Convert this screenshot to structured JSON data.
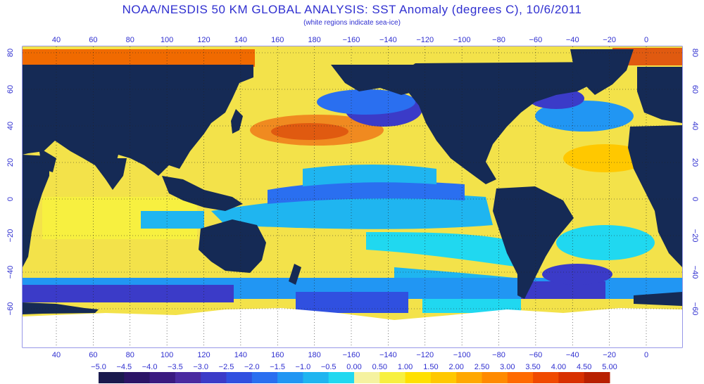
{
  "title": "NOAA/NESDIS 50 KM GLOBAL ANALYSIS: SST Anomaly (degrees C), 10/6/2011",
  "subtitle": "(white regions indicate sea-ice)",
  "longitude_ticks_top": [
    "40",
    "60",
    "80",
    "100",
    "120",
    "140",
    "160",
    "180",
    "−160",
    "−140",
    "−120",
    "−100",
    "−80",
    "−60",
    "−40",
    "−20",
    "0"
  ],
  "longitude_ticks_bottom": [
    "40",
    "60",
    "80",
    "100",
    "120",
    "140",
    "160",
    "180",
    "−160",
    "−140",
    "−120",
    "−100",
    "−80",
    "−60",
    "−40",
    "−20",
    "0"
  ],
  "latitude_ticks_left": [
    "80",
    "60",
    "40",
    "20",
    "0",
    "−20",
    "−40",
    "−60"
  ],
  "latitude_ticks_right": [
    "80",
    "60",
    "40",
    "20",
    "0",
    "−20",
    "−40",
    "−60"
  ],
  "colorbar": {
    "labels": [
      "−5.0",
      "−4.5",
      "−4.0",
      "−3.5",
      "−3.0",
      "−2.5",
      "−2.0",
      "−1.5",
      "−1.0",
      "−0.5",
      "0.00",
      "0.50",
      "1.00",
      "1.50",
      "2.00",
      "2.50",
      "3.00",
      "3.50",
      "4.00",
      "4.50",
      "5.00"
    ],
    "colors": [
      "#1a1a4e",
      "#2b1466",
      "#3a1a80",
      "#4a2aa0",
      "#3b3bc8",
      "#3050e0",
      "#2a6ff0",
      "#2196f3",
      "#1fb5f0",
      "#20d8f0",
      "#f5f2a0",
      "#f7f040",
      "#ffe000",
      "#ffc800",
      "#ffa800",
      "#ff8a00",
      "#ff6a00",
      "#f04a00",
      "#d83000",
      "#b82000"
    ]
  },
  "colors": {
    "land": "#152a55",
    "ice": "#ffffff",
    "text": "#2f2fd0",
    "neutral_sea": "#f5e860"
  }
}
